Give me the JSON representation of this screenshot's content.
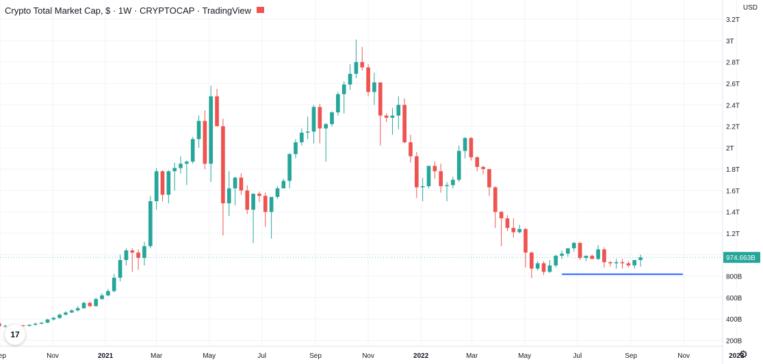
{
  "header": {
    "title": "Crypto Total Market Cap, $ · 1W · CRYPTOCAP · TradingView",
    "currency": "USD"
  },
  "icons": {
    "logo": "tradingview-logo-icon",
    "settings": "gear-icon",
    "logo_text": "17"
  },
  "chart_data": {
    "type": "candlestick",
    "title": "Crypto Total Market Cap, $",
    "interval": "1W",
    "source": "CRYPTOCAP",
    "y_unit": "USD",
    "ylim": [
      145000000000.0,
      3220000000000.0
    ],
    "xlim": [
      "2020-09-01",
      "2022-12-16"
    ],
    "y_ticks": [
      {
        "value": 200000000000.0,
        "label": "200B"
      },
      {
        "value": 400000000000.0,
        "label": "400B"
      },
      {
        "value": 600000000000.0,
        "label": "600B"
      },
      {
        "value": 800000000000.0,
        "label": "800B"
      },
      {
        "value": 1000000000000.0,
        "label": "1T"
      },
      {
        "value": 1200000000000.0,
        "label": "1.2T"
      },
      {
        "value": 1400000000000.0,
        "label": "1.4T"
      },
      {
        "value": 1600000000000.0,
        "label": "1.6T"
      },
      {
        "value": 1800000000000.0,
        "label": "1.8T"
      },
      {
        "value": 2000000000000.0,
        "label": "2T"
      },
      {
        "value": 2200000000000.0,
        "label": "2.2T"
      },
      {
        "value": 2400000000000.0,
        "label": "2.4T"
      },
      {
        "value": 2600000000000.0,
        "label": "2.6T"
      },
      {
        "value": 2800000000000.0,
        "label": "2.8T"
      },
      {
        "value": 3000000000000.0,
        "label": "3T"
      },
      {
        "value": 3200000000000.0,
        "label": "3.2T"
      }
    ],
    "x_ticks": [
      {
        "date": "2020-09-01",
        "label": "Sep",
        "bold": false
      },
      {
        "date": "2020-11-01",
        "label": "Nov",
        "bold": false
      },
      {
        "date": "2021-01-01",
        "label": "2021",
        "bold": true
      },
      {
        "date": "2021-03-01",
        "label": "Mar",
        "bold": false
      },
      {
        "date": "2021-05-01",
        "label": "May",
        "bold": false
      },
      {
        "date": "2021-07-01",
        "label": "Jul",
        "bold": false
      },
      {
        "date": "2021-09-01",
        "label": "Sep",
        "bold": false
      },
      {
        "date": "2021-11-01",
        "label": "Nov",
        "bold": false
      },
      {
        "date": "2022-01-01",
        "label": "2022",
        "bold": true
      },
      {
        "date": "2022-03-01",
        "label": "Mar",
        "bold": false
      },
      {
        "date": "2022-05-01",
        "label": "May",
        "bold": false
      },
      {
        "date": "2022-07-01",
        "label": "Jul",
        "bold": false
      },
      {
        "date": "2022-09-01",
        "label": "Sep",
        "bold": false
      },
      {
        "date": "2022-11-01",
        "label": "Nov",
        "bold": false
      },
      {
        "date": "2023-01-01",
        "label": "2023",
        "bold": true
      }
    ],
    "first_candle_date": "2020-08-31",
    "interval_days": 7,
    "candles": [
      [
        360,
        370,
        320,
        330
      ],
      [
        330,
        345,
        320,
        335
      ],
      [
        335,
        345,
        325,
        330
      ],
      [
        330,
        345,
        325,
        340
      ],
      [
        340,
        345,
        330,
        335
      ],
      [
        335,
        350,
        330,
        345
      ],
      [
        345,
        365,
        340,
        355
      ],
      [
        355,
        370,
        350,
        365
      ],
      [
        365,
        400,
        360,
        395
      ],
      [
        395,
        420,
        385,
        410
      ],
      [
        410,
        450,
        400,
        440
      ],
      [
        440,
        470,
        430,
        460
      ],
      [
        460,
        490,
        455,
        480
      ],
      [
        480,
        520,
        470,
        500
      ],
      [
        500,
        560,
        495,
        550
      ],
      [
        550,
        560,
        510,
        520
      ],
      [
        520,
        600,
        515,
        585
      ],
      [
        585,
        640,
        580,
        620
      ],
      [
        620,
        680,
        610,
        660
      ],
      [
        660,
        820,
        650,
        785
      ],
      [
        785,
        1000,
        750,
        950
      ],
      [
        950,
        1060,
        900,
        1040
      ],
      [
        1040,
        1060,
        840,
        1020
      ],
      [
        1020,
        1050,
        860,
        970
      ],
      [
        970,
        1120,
        900,
        1080
      ],
      [
        1080,
        1550,
        1060,
        1500
      ],
      [
        1500,
        1810,
        1420,
        1780
      ],
      [
        1780,
        1790,
        1500,
        1560
      ],
      [
        1560,
        1790,
        1480,
        1780
      ],
      [
        1780,
        1860,
        1600,
        1810
      ],
      [
        1810,
        1920,
        1760,
        1850
      ],
      [
        1850,
        1880,
        1650,
        1870
      ],
      [
        1870,
        2100,
        1850,
        2080
      ],
      [
        2080,
        2300,
        2000,
        2250
      ],
      [
        2250,
        2350,
        1800,
        1850
      ],
      [
        1850,
        2580,
        1680,
        2480
      ],
      [
        2480,
        2550,
        2200,
        2200
      ],
      [
        2200,
        2270,
        1180,
        1480
      ],
      [
        1480,
        1780,
        1360,
        1620
      ],
      [
        1620,
        1730,
        1460,
        1720
      ],
      [
        1720,
        1760,
        1560,
        1600
      ],
      [
        1600,
        1650,
        1380,
        1420
      ],
      [
        1420,
        1570,
        1110,
        1570
      ],
      [
        1570,
        1590,
        1490,
        1550
      ],
      [
        1550,
        1580,
        1260,
        1400
      ],
      [
        1400,
        1520,
        1150,
        1540
      ],
      [
        1540,
        1640,
        1520,
        1620
      ],
      [
        1620,
        1710,
        1620,
        1690
      ],
      [
        1690,
        1950,
        1620,
        1940
      ],
      [
        1940,
        2080,
        1900,
        2050
      ],
      [
        2050,
        2180,
        2020,
        2140
      ],
      [
        2140,
        2290,
        2080,
        2150
      ],
      [
        2150,
        2400,
        2040,
        2380
      ],
      [
        2380,
        2410,
        2040,
        2180
      ],
      [
        2180,
        2230,
        1870,
        2220
      ],
      [
        2220,
        2340,
        2200,
        2330
      ],
      [
        2330,
        2520,
        2300,
        2500
      ],
      [
        2500,
        2620,
        2320,
        2590
      ],
      [
        2590,
        2780,
        2540,
        2690
      ],
      [
        2690,
        3010,
        2650,
        2800
      ],
      [
        2800,
        2940,
        2720,
        2750
      ],
      [
        2750,
        2780,
        2480,
        2520
      ],
      [
        2520,
        2700,
        2400,
        2610
      ],
      [
        2610,
        2600,
        2020,
        2300
      ],
      [
        2300,
        2320,
        2240,
        2280
      ],
      [
        2280,
        2370,
        2120,
        2300
      ],
      [
        2300,
        2480,
        2170,
        2400
      ],
      [
        2400,
        2460,
        2040,
        2050
      ],
      [
        2050,
        2120,
        1860,
        1920
      ],
      [
        1920,
        1960,
        1530,
        1630
      ],
      [
        1630,
        1720,
        1500,
        1640
      ],
      [
        1640,
        1830,
        1620,
        1830
      ],
      [
        1830,
        1870,
        1710,
        1780
      ],
      [
        1780,
        1850,
        1580,
        1640
      ],
      [
        1640,
        1680,
        1500,
        1650
      ],
      [
        1650,
        1730,
        1620,
        1700
      ],
      [
        1700,
        2020,
        1680,
        1970
      ],
      [
        1970,
        2100,
        1900,
        2090
      ],
      [
        2090,
        2100,
        1880,
        1910
      ],
      [
        1910,
        1920,
        1780,
        1820
      ],
      [
        1820,
        1830,
        1750,
        1800
      ],
      [
        1800,
        1800,
        1550,
        1630
      ],
      [
        1630,
        1640,
        1250,
        1400
      ],
      [
        1400,
        1410,
        1080,
        1340
      ],
      [
        1340,
        1370,
        1220,
        1250
      ],
      [
        1250,
        1340,
        1160,
        1210
      ],
      [
        1210,
        1280,
        1200,
        1240
      ],
      [
        1240,
        1250,
        880,
        1020
      ],
      [
        1020,
        1030,
        780,
        870
      ],
      [
        870,
        940,
        850,
        920
      ],
      [
        920,
        940,
        810,
        840
      ],
      [
        840,
        950,
        830,
        900
      ],
      [
        900,
        1000,
        880,
        990
      ],
      [
        990,
        1040,
        960,
        1010
      ],
      [
        1010,
        1050,
        980,
        1060
      ],
      [
        1060,
        1120,
        1030,
        1110
      ],
      [
        1110,
        1120,
        950,
        970
      ],
      [
        970,
        990,
        940,
        990
      ],
      [
        990,
        1000,
        970,
        960
      ],
      [
        960,
        1090,
        950,
        1050
      ],
      [
        1050,
        1070,
        880,
        930
      ],
      [
        930,
        940,
        890,
        920
      ],
      [
        920,
        960,
        870,
        930
      ],
      [
        930,
        960,
        870,
        920
      ],
      [
        920,
        940,
        880,
        900
      ],
      [
        900,
        930,
        870,
        950
      ],
      [
        950,
        1000,
        890,
        975
      ]
    ],
    "annotations": [
      {
        "type": "horizontal-line",
        "value": 818000000000.0,
        "from": "2022-06-13",
        "to": "2022-10-31",
        "color": "#2962ff"
      },
      {
        "type": "last-price",
        "value": 974663000000.0,
        "label": "974.663B",
        "color": "#26a69a"
      }
    ],
    "grid": true,
    "colors": {
      "up": "#26a69a",
      "down": "#ef5350",
      "grid": "#f0f3fa",
      "text": "#131722"
    }
  }
}
